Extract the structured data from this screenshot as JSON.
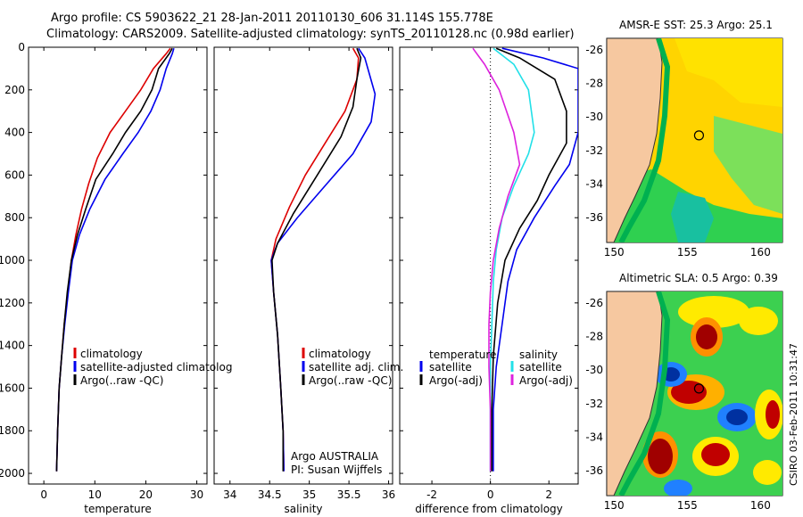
{
  "header": {
    "title_line1": "Argo profile: CS 5903622_21 28-Jan-2011 20110130_606 31.114S 155.778E",
    "title_line2": "Climatology: CARS2009. Satellite-adjusted climatology: synTS_20110128.nc (0.98d earlier)"
  },
  "side_label": "CSIRO 03-Feb-2011 10:31:47",
  "colors": {
    "climatology": "#dd0000",
    "satellite": "#0000ee",
    "argo": "#000000",
    "satellite_diff": "#22e0e8",
    "argo_diff": "#dd22dd",
    "land": "#f6c8a0"
  },
  "chart_data": [
    {
      "type": "line",
      "xlabel": "temperature",
      "ylabel": "",
      "xlim": [
        -3,
        32
      ],
      "ylim": [
        2050,
        0
      ],
      "xticks": [
        0,
        10,
        20,
        30
      ],
      "yticks": [
        0,
        200,
        400,
        600,
        800,
        1000,
        1200,
        1400,
        1600,
        1800,
        2000
      ],
      "legend": {
        "placement": "lower-left",
        "entries": [
          "climatology",
          "satellite-adjusted climatolog",
          "Argo(..raw -QC)"
        ]
      },
      "series": [
        {
          "name": "climatology",
          "color": "#dd0000",
          "x": [
            24.8,
            24.0,
            21.5,
            19.0,
            16.0,
            13.0,
            10.5,
            8.8,
            7.4,
            6.3,
            5.4,
            4.7,
            4.0,
            3.5,
            3.0,
            2.7,
            2.5
          ],
          "y": [
            5,
            30,
            100,
            200,
            300,
            400,
            520,
            640,
            760,
            880,
            1000,
            1150,
            1300,
            1450,
            1600,
            1800,
            1990
          ]
        },
        {
          "name": "satellite-adjusted climatolog",
          "color": "#0000ee",
          "x": [
            25.5,
            25.2,
            24.0,
            22.8,
            21.0,
            18.5,
            15.5,
            12.0,
            9.0,
            7.0,
            5.6,
            4.8,
            4.1,
            3.5,
            3.0,
            2.7,
            2.5
          ],
          "y": [
            5,
            30,
            100,
            200,
            300,
            400,
            500,
            620,
            760,
            880,
            1000,
            1150,
            1300,
            1450,
            1600,
            1800,
            1990
          ]
        },
        {
          "name": "Argo(..raw -QC)",
          "color": "#000000",
          "x": [
            25.2,
            24.6,
            22.5,
            21.2,
            19.0,
            16.0,
            13.5,
            10.2,
            8.2,
            6.6,
            5.4,
            4.6,
            4.0,
            3.5,
            3.0,
            2.7,
            2.5
          ],
          "y": [
            5,
            30,
            100,
            200,
            300,
            400,
            500,
            620,
            760,
            880,
            1000,
            1150,
            1300,
            1450,
            1600,
            1800,
            1990
          ]
        }
      ]
    },
    {
      "type": "line",
      "xlabel": "salinity",
      "ylabel": "",
      "xlim": [
        33.8,
        36.05
      ],
      "ylim": [
        2050,
        0
      ],
      "xticks": [
        34,
        34.5,
        35,
        35.5,
        36
      ],
      "yticks": [
        0,
        200,
        400,
        600,
        800,
        1000,
        1200,
        1400,
        1600,
        1800,
        2000
      ],
      "legend": {
        "placement": "lower-left",
        "entries": [
          "climatology",
          "satellite adj. clim.",
          "Argo(..raw -QC)"
        ]
      },
      "annotations": [
        "Argo AUSTRALIA",
        "PI: Susan Wijffels"
      ],
      "series": [
        {
          "name": "climatology",
          "color": "#dd0000",
          "x": [
            35.55,
            35.62,
            35.6,
            35.45,
            35.2,
            34.95,
            34.75,
            34.58,
            34.52,
            34.55,
            34.6,
            34.64,
            34.67,
            34.68
          ],
          "y": [
            5,
            50,
            150,
            300,
            450,
            600,
            750,
            900,
            1000,
            1150,
            1350,
            1600,
            1800,
            1990
          ]
        },
        {
          "name": "satellite adj. clim.",
          "color": "#0000ee",
          "x": [
            35.62,
            35.7,
            35.83,
            35.78,
            35.55,
            35.2,
            34.85,
            34.6,
            34.52,
            34.55,
            34.6,
            34.64,
            34.67,
            34.68
          ],
          "y": [
            5,
            50,
            220,
            350,
            500,
            650,
            800,
            920,
            1000,
            1150,
            1350,
            1600,
            1800,
            1990
          ]
        },
        {
          "name": "Argo(..raw -QC)",
          "color": "#000000",
          "x": [
            35.6,
            35.65,
            35.6,
            35.55,
            35.4,
            35.1,
            34.8,
            34.6,
            34.53,
            34.55,
            34.6,
            34.64,
            34.67,
            34.67
          ],
          "y": [
            5,
            50,
            150,
            280,
            420,
            600,
            780,
            920,
            1000,
            1150,
            1350,
            1600,
            1800,
            1990
          ]
        }
      ]
    },
    {
      "type": "line",
      "xlabel": "difference from climatology",
      "ylabel": "",
      "xlim": [
        -3.1,
        3
      ],
      "ylim": [
        2050,
        0
      ],
      "xticks": [
        -2,
        0,
        2
      ],
      "yticks": [
        0,
        200,
        400,
        600,
        800,
        1000,
        1200,
        1400,
        1600,
        1800,
        2000
      ],
      "legend": {
        "placement": "lower-center",
        "headers": [
          "temperature",
          "salinity"
        ],
        "entries": [
          "satellite",
          "Argo(-adj)",
          "satellite",
          "Argo(-adj)"
        ]
      },
      "series": [
        {
          "name": "satellite",
          "group": "temperature",
          "color": "#0000ee",
          "x": [
            0.4,
            1.8,
            3.0,
            3.0,
            2.7,
            2.2,
            1.5,
            0.9,
            0.6,
            0.4,
            0.2,
            0.1,
            0.1
          ],
          "y": [
            5,
            50,
            100,
            400,
            550,
            650,
            800,
            950,
            1100,
            1300,
            1500,
            1700,
            1990
          ]
        },
        {
          "name": "Argo(-adj)",
          "group": "temperature",
          "color": "#000000",
          "x": [
            0.2,
            1.0,
            2.2,
            2.6,
            2.6,
            2.0,
            1.6,
            1.0,
            0.5,
            0.25,
            0.1,
            0.05,
            0.05
          ],
          "y": [
            5,
            50,
            150,
            300,
            450,
            600,
            720,
            850,
            1000,
            1200,
            1450,
            1700,
            1990
          ]
        },
        {
          "name": "satellite",
          "group": "salinity",
          "color": "#22e0e8",
          "x": [
            0.1,
            0.8,
            1.3,
            1.5,
            1.3,
            0.8,
            0.4,
            0.2,
            0.1,
            0.05,
            0.0,
            0.0,
            0.0
          ],
          "y": [
            5,
            80,
            200,
            400,
            500,
            650,
            800,
            950,
            1100,
            1300,
            1500,
            1700,
            1990
          ]
        },
        {
          "name": "Argo(-adj)",
          "group": "salinity",
          "color": "#dd22dd",
          "x": [
            -0.6,
            -0.2,
            0.3,
            0.8,
            1.0,
            0.6,
            0.3,
            0.1,
            0.0,
            -0.05,
            -0.05,
            0.0,
            0.0
          ],
          "y": [
            5,
            80,
            200,
            400,
            550,
            700,
            850,
            1000,
            1150,
            1300,
            1500,
            1700,
            1990
          ]
        }
      ]
    },
    {
      "type": "heatmap",
      "title": "AMSR-E SST: 25.3 Argo: 25.1",
      "xlim": [
        149.5,
        161.5
      ],
      "ylim": [
        -37.5,
        -25.3
      ],
      "xticks": [
        150,
        155,
        160
      ],
      "yticks": [
        -26,
        -28,
        -30,
        -32,
        -34,
        -36
      ],
      "float_position": {
        "lon": 155.8,
        "lat": -31.1
      }
    },
    {
      "type": "heatmap",
      "title": "Altimetric SLA: 0.5 Argo: 0.39",
      "xlim": [
        149.5,
        161.5
      ],
      "ylim": [
        -37.5,
        -25.3
      ],
      "xticks": [
        150,
        155,
        160
      ],
      "yticks": [
        -26,
        -28,
        -30,
        -32,
        -34,
        -36
      ],
      "float_position": {
        "lon": 155.8,
        "lat": -31.1
      }
    }
  ]
}
